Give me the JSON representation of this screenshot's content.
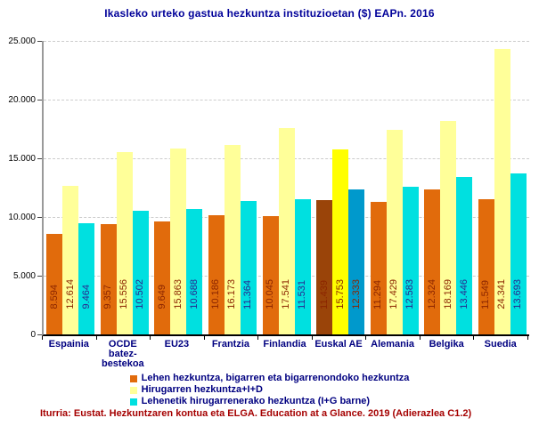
{
  "source": "Iturria: Eustat. Hezkuntzaren kontua eta ELGA. Education at a Glance. 2019 (Adierazlea C1.2)",
  "colors": {
    "title": "#000099",
    "axis_category_labels": "#000080",
    "ytick_labels": "#000000",
    "gridline": "#cccccc",
    "source_note": "#a50000"
  },
  "chart_data": {
    "type": "bar",
    "title": "Ikasleko urteko gastua hezkuntza instituzioetan ($) EAPn. 2016",
    "xlabel": "",
    "ylabel": "",
    "ylim": [
      0,
      25000
    ],
    "ytick_step": 5000,
    "ytick_labels": [
      "0",
      "5.000",
      "10.000",
      "15.000",
      "20.000",
      "25.000"
    ],
    "grid": "horizontal-dashed",
    "legend_position": "bottom",
    "categories": [
      "Espainia",
      "OCDE batez-bestekoa",
      "EU23",
      "Frantzia",
      "Finlandia",
      "Euskal AE",
      "Alemania",
      "Belgika",
      "Suedia"
    ],
    "category_lines": [
      [
        "Espainia"
      ],
      [
        "OCDE",
        "batez-",
        "bestekoa"
      ],
      [
        "EU23"
      ],
      [
        "Frantzia"
      ],
      [
        "Finlandia"
      ],
      [
        "Euskal AE"
      ],
      [
        "Alemania"
      ],
      [
        "Belgika"
      ],
      [
        "Suedia"
      ]
    ],
    "highlight_category": "Euskal AE",
    "series": [
      {
        "name": "Lehen hezkuntza, bigarren eta bigarrenondoko hezkuntza",
        "color": "#e16b0c",
        "highlight_color": "#9a4409",
        "label_color": "#8b2500",
        "highlight_label_color": "#8b2500",
        "values": [
          8594,
          9357,
          9649,
          10186,
          10045,
          11439,
          11294,
          12324,
          11549
        ],
        "value_labels": [
          "8.594",
          "9.357",
          "9.649",
          "10.186",
          "10.045",
          "11.439",
          "11.294",
          "12.324",
          "11.549"
        ]
      },
      {
        "name": "Hirugarren hezkuntza+I+D",
        "color": "#ffff99",
        "highlight_color": "#ffff00",
        "label_color": "#8b2500",
        "highlight_label_color": "#8b2500",
        "values": [
          12614,
          15556,
          15863,
          16173,
          17541,
          15753,
          17429,
          18169,
          24341
        ],
        "value_labels": [
          "12.614",
          "15.556",
          "15.863",
          "16.173",
          "17.541",
          "15.753",
          "17.429",
          "18.169",
          "24.341"
        ]
      },
      {
        "name": "Lehenetik hirugarrenerako hezkuntza (I+G barne)",
        "color": "#00e0e0",
        "highlight_color": "#0099cc",
        "label_color": "#28288f",
        "highlight_label_color": "#8b2500",
        "values": [
          9464,
          10502,
          10688,
          11364,
          11531,
          12333,
          12583,
          13446,
          13693
        ],
        "value_labels": [
          "9.464",
          "10.502",
          "10.688",
          "11.364",
          "11.531",
          "12.333",
          "12.583",
          "13.446",
          "13.693"
        ]
      }
    ]
  }
}
